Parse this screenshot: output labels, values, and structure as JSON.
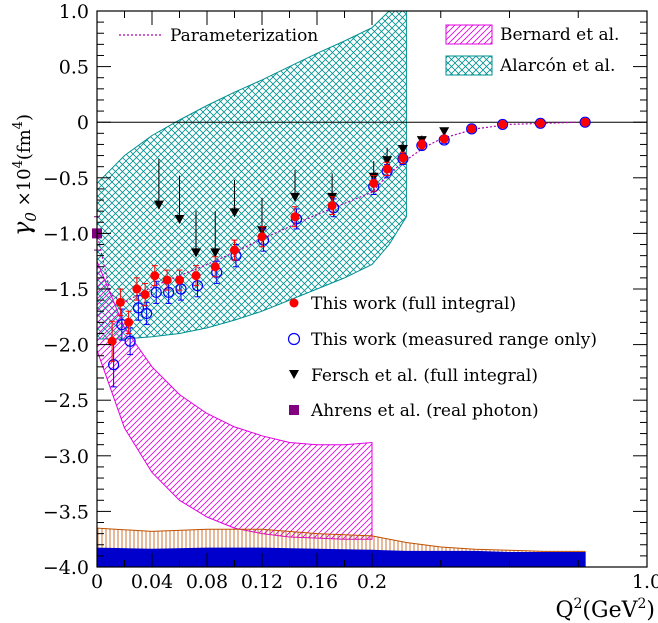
{
  "chart_data": {
    "type": "scatter",
    "axes": {
      "x": {
        "label": "Q²(GeV²)",
        "label_base": "Q",
        "label_sup": "2",
        "label_unit_open": "(GeV",
        "label_unit_sup": "2",
        "label_unit_close": ")",
        "segments": [
          {
            "range": [
              0,
              0.2
            ],
            "ticks": [
              0,
              0.04,
              0.08,
              0.12,
              0.16,
              0.2
            ],
            "tick_labels": [
              "0",
              "0.04",
              "0.08",
              "0.12",
              "0.16",
              "0.2"
            ]
          },
          {
            "range": [
              0.2,
              1.0
            ],
            "ticks": [
              1.0
            ],
            "tick_labels": [
              "1.0"
            ]
          }
        ]
      },
      "y": {
        "label": "γ0 ×10⁴(fm⁴)",
        "label_symbol": "γ",
        "label_sub": "0",
        "label_rest": " ×10",
        "label_sup": "4",
        "label_unit": "(fm",
        "label_unit_sup": "4",
        "label_unit_close": ")",
        "range": [
          -4.0,
          1.0
        ],
        "ticks": [
          1.0,
          0.5,
          0,
          -0.5,
          -1.0,
          -1.5,
          -2.0,
          -2.5,
          -3.0,
          -3.5,
          -4.0
        ],
        "tick_labels": [
          "1.0",
          "0.5",
          "0",
          "−0.5",
          "−1.0",
          "−1.5",
          "−2.0",
          "−2.5",
          "−3.0",
          "−3.5",
          "−4.0"
        ]
      }
    },
    "legend": [
      {
        "key": "param",
        "label": "Parameterization",
        "position": "top-left"
      },
      {
        "key": "bernard",
        "label": "Bernard et al.",
        "position": "top-right"
      },
      {
        "key": "alarcon",
        "label": "Alarcón et al.",
        "position": "top-right"
      },
      {
        "key": "full",
        "label": "This work (full integral)",
        "position": "center-right"
      },
      {
        "key": "measured",
        "label": "This work (measured range only)",
        "position": "center-right"
      },
      {
        "key": "fersch",
        "label": "Fersch et al. (full integral)",
        "position": "center-right"
      },
      {
        "key": "ahrens",
        "label": "Ahrens et al. (real photon)",
        "position": "center-right"
      }
    ],
    "colors": {
      "full": "#ff0000",
      "measured": "#0000ff",
      "fersch": "#000000",
      "ahrens": "#800080",
      "parameterization": "#b000b0",
      "bernard": "#e000e0",
      "alarcon": "#009090",
      "systematic_orange": "#c05000",
      "systematic_blue": "#0000cc"
    },
    "series": {
      "this_work_full": [
        {
          "x": 0.011,
          "y": -1.97,
          "err": 0.18
        },
        {
          "x": 0.017,
          "y": -1.62,
          "err": 0.12
        },
        {
          "x": 0.023,
          "y": -1.8,
          "err": 0.1
        },
        {
          "x": 0.029,
          "y": -1.5,
          "err": 0.1
        },
        {
          "x": 0.035,
          "y": -1.55,
          "err": 0.1
        },
        {
          "x": 0.042,
          "y": -1.38,
          "err": 0.09
        },
        {
          "x": 0.051,
          "y": -1.42,
          "err": 0.09
        },
        {
          "x": 0.06,
          "y": -1.42,
          "err": 0.09
        },
        {
          "x": 0.072,
          "y": -1.38,
          "err": 0.09
        },
        {
          "x": 0.086,
          "y": -1.3,
          "err": 0.09
        },
        {
          "x": 0.1,
          "y": -1.15,
          "err": 0.09
        },
        {
          "x": 0.12,
          "y": -1.03,
          "err": 0.09
        },
        {
          "x": 0.144,
          "y": -0.85,
          "err": 0.09
        },
        {
          "x": 0.171,
          "y": -0.75,
          "err": 0.08
        },
        {
          "x": 0.205,
          "y": -0.55,
          "err": 0.07
        },
        {
          "x": 0.244,
          "y": -0.42,
          "err": 0.06
        },
        {
          "x": 0.29,
          "y": -0.32,
          "err": 0.05
        },
        {
          "x": 0.345,
          "y": -0.2,
          "err": 0.04
        },
        {
          "x": 0.41,
          "y": -0.15,
          "err": 0.03
        },
        {
          "x": 0.49,
          "y": -0.06,
          "err": 0.02
        },
        {
          "x": 0.58,
          "y": -0.02,
          "err": 0.01
        },
        {
          "x": 0.69,
          "y": -0.01,
          "err": 0.01
        },
        {
          "x": 0.82,
          "y": 0.0,
          "err": 0.01
        }
      ],
      "this_work_measured": [
        {
          "x": 0.011,
          "y": -2.18,
          "err": 0.2
        },
        {
          "x": 0.017,
          "y": -1.82,
          "err": 0.14
        },
        {
          "x": 0.023,
          "y": -1.97,
          "err": 0.12
        },
        {
          "x": 0.029,
          "y": -1.67,
          "err": 0.11
        },
        {
          "x": 0.035,
          "y": -1.72,
          "err": 0.1
        },
        {
          "x": 0.042,
          "y": -1.53,
          "err": 0.1
        },
        {
          "x": 0.051,
          "y": -1.53,
          "err": 0.1
        },
        {
          "x": 0.06,
          "y": -1.5,
          "err": 0.1
        },
        {
          "x": 0.072,
          "y": -1.47,
          "err": 0.1
        },
        {
          "x": 0.086,
          "y": -1.35,
          "err": 0.1
        },
        {
          "x": 0.1,
          "y": -1.2,
          "err": 0.1
        },
        {
          "x": 0.12,
          "y": -1.06,
          "err": 0.1
        },
        {
          "x": 0.144,
          "y": -0.87,
          "err": 0.09
        },
        {
          "x": 0.171,
          "y": -0.77,
          "err": 0.08
        },
        {
          "x": 0.205,
          "y": -0.58,
          "err": 0.07
        },
        {
          "x": 0.244,
          "y": -0.44,
          "err": 0.06
        },
        {
          "x": 0.29,
          "y": -0.33,
          "err": 0.05
        },
        {
          "x": 0.345,
          "y": -0.21,
          "err": 0.04
        },
        {
          "x": 0.41,
          "y": -0.16,
          "err": 0.03
        },
        {
          "x": 0.49,
          "y": -0.06,
          "err": 0.02
        },
        {
          "x": 0.58,
          "y": -0.02,
          "err": 0.01
        },
        {
          "x": 0.69,
          "y": -0.01,
          "err": 0.01
        },
        {
          "x": 0.82,
          "y": 0.0,
          "err": 0.01
        }
      ],
      "fersch": [
        {
          "x": 0.045,
          "y": -0.75,
          "up": 0.42,
          "down": 0.0
        },
        {
          "x": 0.06,
          "y": -0.88,
          "up": 0.4,
          "down": 0.0
        },
        {
          "x": 0.072,
          "y": -1.18,
          "up": 0.38,
          "down": 0.0
        },
        {
          "x": 0.086,
          "y": -1.18,
          "up": 0.38,
          "down": 0.0
        },
        {
          "x": 0.1,
          "y": -0.82,
          "up": 0.3,
          "down": 0.0
        },
        {
          "x": 0.12,
          "y": -0.98,
          "up": 0.3,
          "down": 0.0
        },
        {
          "x": 0.144,
          "y": -0.68,
          "up": 0.25,
          "down": 0.0
        },
        {
          "x": 0.171,
          "y": -0.68,
          "up": 0.22,
          "down": 0.0
        },
        {
          "x": 0.205,
          "y": -0.5,
          "up": 0.15,
          "down": 0.0
        },
        {
          "x": 0.244,
          "y": -0.35,
          "up": 0.12,
          "down": 0.0
        },
        {
          "x": 0.29,
          "y": -0.25,
          "up": 0.08,
          "down": 0.0
        },
        {
          "x": 0.345,
          "y": -0.17,
          "up": 0.05,
          "down": 0.0
        },
        {
          "x": 0.41,
          "y": -0.09,
          "up": 0.03,
          "down": 0.0
        }
      ],
      "ahrens": [
        {
          "x": 0.0,
          "y": -1.0,
          "err": 0.15
        }
      ],
      "parameterization": [
        {
          "x": 0.0,
          "y": -1.0
        },
        {
          "x": 0.01,
          "y": -1.55
        },
        {
          "x": 0.02,
          "y": -1.62
        },
        {
          "x": 0.03,
          "y": -1.55
        },
        {
          "x": 0.04,
          "y": -1.48
        },
        {
          "x": 0.06,
          "y": -1.38
        },
        {
          "x": 0.08,
          "y": -1.28
        },
        {
          "x": 0.1,
          "y": -1.17
        },
        {
          "x": 0.12,
          "y": -1.05
        },
        {
          "x": 0.16,
          "y": -0.83
        },
        {
          "x": 0.2,
          "y": -0.63
        },
        {
          "x": 0.25,
          "y": -0.46
        },
        {
          "x": 0.3,
          "y": -0.34
        },
        {
          "x": 0.35,
          "y": -0.23
        },
        {
          "x": 0.4,
          "y": -0.15
        },
        {
          "x": 0.5,
          "y": -0.06
        },
        {
          "x": 0.6,
          "y": -0.02
        },
        {
          "x": 0.8,
          "y": 0.0
        }
      ],
      "bernard_band": {
        "x": [
          0.0,
          0.02,
          0.04,
          0.06,
          0.08,
          0.1,
          0.12,
          0.14,
          0.16,
          0.18,
          0.2
        ],
        "upper": [
          -1.25,
          -1.85,
          -2.2,
          -2.45,
          -2.62,
          -2.74,
          -2.82,
          -2.88,
          -2.9,
          -2.9,
          -2.88
        ],
        "lower": [
          -2.05,
          -2.75,
          -3.15,
          -3.4,
          -3.55,
          -3.65,
          -3.7,
          -3.73,
          -3.74,
          -3.75,
          -3.75
        ]
      },
      "alarcon_band": {
        "x": [
          0.0,
          0.02,
          0.04,
          0.06,
          0.08,
          0.1,
          0.12,
          0.14,
          0.16,
          0.18,
          0.2,
          0.25,
          0.3
        ],
        "upper": [
          -0.55,
          -0.3,
          -0.12,
          0.02,
          0.15,
          0.27,
          0.38,
          0.5,
          0.62,
          0.73,
          0.85,
          1.0,
          1.0
        ],
        "lower": [
          -1.95,
          -1.95,
          -1.93,
          -1.9,
          -1.85,
          -1.78,
          -1.7,
          -1.6,
          -1.5,
          -1.4,
          -1.28,
          -1.1,
          -0.85
        ]
      },
      "systematic_orange": {
        "x": [
          0.0,
          0.04,
          0.08,
          0.12,
          0.16,
          0.2,
          0.3,
          0.4,
          0.5,
          0.6,
          0.7,
          0.82
        ],
        "top": [
          -3.65,
          -3.68,
          -3.66,
          -3.66,
          -3.7,
          -3.72,
          -3.78,
          -3.82,
          -3.84,
          -3.85,
          -3.86,
          -3.86
        ]
      },
      "systematic_blue": {
        "x": [
          0.0,
          0.04,
          0.08,
          0.12,
          0.16,
          0.2,
          0.3,
          0.4,
          0.5,
          0.6,
          0.7,
          0.82
        ],
        "top": [
          -3.83,
          -3.84,
          -3.83,
          -3.83,
          -3.84,
          -3.85,
          -3.86,
          -3.86,
          -3.86,
          -3.87,
          -3.87,
          -3.87
        ]
      }
    }
  }
}
